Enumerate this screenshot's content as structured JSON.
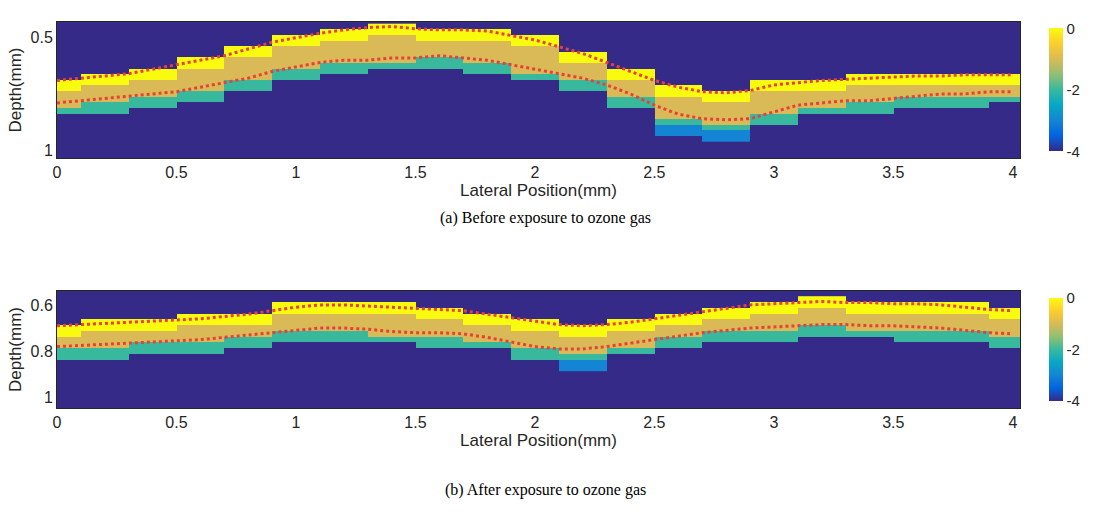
{
  "chart_data": [
    {
      "type": "heatmap",
      "caption": "(a) Before exposure to ozone gas",
      "x_label": "Lateral Position(mm)",
      "y_label": "Depth(mm)",
      "xlim": [
        0,
        4.03
      ],
      "xticks": [
        0,
        0.5,
        1,
        1.5,
        2,
        2.5,
        3,
        3.5,
        4
      ],
      "ylim": [
        1.035,
        0.43
      ],
      "yticks": [
        0.5,
        1
      ],
      "colorbar_range": [
        -4,
        0
      ],
      "colorbar_ticks": [
        -4,
        -2,
        0
      ],
      "x": [
        0,
        0.2,
        0.4,
        0.6,
        0.8,
        1.0,
        1.2,
        1.4,
        1.6,
        1.8,
        2.0,
        2.2,
        2.4,
        2.6,
        2.8,
        3.0,
        3.2,
        3.4,
        3.6,
        3.8,
        4.0
      ],
      "y": [
        0.45,
        0.475,
        0.5,
        0.525,
        0.55,
        0.575,
        0.6,
        0.625,
        0.65,
        0.675,
        0.7,
        0.725,
        0.75,
        0.775,
        0.8,
        0.825,
        0.85,
        0.875,
        0.9,
        0.925,
        0.95
      ],
      "z": [
        [
          -4,
          -4,
          -4,
          -4,
          -4,
          -4,
          -4,
          0,
          -4,
          -4,
          -4,
          -4,
          -4,
          -4,
          -4,
          -4,
          -4,
          -4,
          -4,
          -4,
          -4
        ],
        [
          -4,
          -4,
          -4,
          -4,
          -4,
          -4,
          0,
          0,
          0,
          0,
          -4,
          -4,
          -4,
          -4,
          -4,
          -4,
          -4,
          -4,
          -4,
          -4,
          -4
        ],
        [
          -4,
          -4,
          -4,
          -4,
          -4,
          0,
          0,
          -1,
          0,
          0,
          0,
          -4,
          -4,
          -4,
          -4,
          -4,
          -4,
          -4,
          -4,
          -4,
          -4
        ],
        [
          -4,
          -4,
          -4,
          -4,
          -4,
          0,
          -1,
          -1,
          -1,
          -1,
          0,
          -4,
          -4,
          -4,
          -4,
          -4,
          -4,
          -4,
          -4,
          -4,
          -4
        ],
        [
          -4,
          -4,
          -4,
          -4,
          0,
          -1,
          -1,
          -1,
          -1,
          -1,
          -1,
          -4,
          -4,
          -4,
          -4,
          -4,
          -4,
          -4,
          -4,
          -4,
          -4
        ],
        [
          -4,
          -4,
          -4,
          -4,
          0,
          -1,
          -1,
          -1,
          -1,
          -1,
          -1,
          0,
          -4,
          -4,
          -4,
          -4,
          -4,
          -4,
          -4,
          -4,
          -4
        ],
        [
          -4,
          -4,
          -4,
          0,
          -1,
          -1,
          -1,
          -1,
          -2,
          -1,
          -1,
          0,
          -4,
          -4,
          -4,
          -4,
          -4,
          -4,
          -4,
          -4,
          -4
        ],
        [
          -4,
          -4,
          -4,
          0,
          -1,
          -1,
          -2,
          -2,
          -2,
          -2,
          -1,
          -1,
          -4,
          -4,
          -4,
          -4,
          -4,
          -4,
          -4,
          -4,
          -4
        ],
        [
          -4,
          -4,
          0,
          -1,
          -1,
          -2,
          -2,
          -4,
          -4,
          -2,
          -1,
          -1,
          0,
          -4,
          -4,
          -4,
          -4,
          -4,
          -4,
          -4,
          -4
        ],
        [
          -4,
          0,
          0,
          -1,
          -1,
          -2,
          -4,
          -4,
          -4,
          -4,
          -2,
          -1,
          0,
          -4,
          -4,
          -4,
          -4,
          0,
          0,
          0,
          0
        ],
        [
          0,
          0,
          -1,
          -1,
          -2,
          -4,
          -4,
          -4,
          -4,
          -4,
          -4,
          -2,
          -1,
          -4,
          -4,
          0,
          0,
          0,
          0,
          0,
          0
        ],
        [
          0,
          -1,
          -1,
          -1,
          -2,
          -4,
          -4,
          -4,
          -4,
          -4,
          -4,
          -2,
          -1,
          0,
          -4,
          0,
          0,
          -1,
          -1,
          -1,
          -1
        ],
        [
          -1,
          -1,
          -1,
          -2,
          -4,
          -4,
          -4,
          -4,
          -4,
          -4,
          -4,
          -4,
          -1,
          0,
          0,
          -1,
          -1,
          -1,
          -1,
          -1,
          -1
        ],
        [
          -1,
          -1,
          -2,
          -2,
          -4,
          -4,
          -4,
          -4,
          -4,
          -4,
          -4,
          -4,
          -2,
          -1,
          0,
          -1,
          -1,
          -1,
          -2,
          -2,
          -2
        ],
        [
          -1,
          -2,
          -2,
          -4,
          -4,
          -4,
          -4,
          -4,
          -4,
          -4,
          -4,
          -4,
          -2,
          -1,
          -1,
          -1,
          -1,
          -2,
          -2,
          -2,
          -4
        ],
        [
          -2,
          -2,
          -4,
          -4,
          -4,
          -4,
          -4,
          -4,
          -4,
          -4,
          -4,
          -4,
          -4,
          -1,
          -1,
          -1,
          -2,
          -2,
          -4,
          -4,
          -4
        ],
        [
          -4,
          -4,
          -4,
          -4,
          -4,
          -4,
          -4,
          -4,
          -4,
          -4,
          -4,
          -4,
          -4,
          -1,
          -1,
          -2,
          -4,
          -4,
          -4,
          -4,
          -4
        ],
        [
          -4,
          -4,
          -4,
          -4,
          -4,
          -4,
          -4,
          -4,
          -4,
          -4,
          -4,
          -4,
          -4,
          -2,
          -1,
          -2,
          -4,
          -4,
          -4,
          -4,
          -4
        ],
        [
          -4,
          -4,
          -4,
          -4,
          -4,
          -4,
          -4,
          -4,
          -4,
          -4,
          -4,
          -4,
          -4,
          -3,
          -2,
          -4,
          -4,
          -4,
          -4,
          -4,
          -4
        ],
        [
          -4,
          -4,
          -4,
          -4,
          -4,
          -4,
          -4,
          -4,
          -4,
          -4,
          -4,
          -4,
          -4,
          -3,
          -3,
          -4,
          -4,
          -4,
          -4,
          -4,
          -4
        ],
        [
          -4,
          -4,
          -4,
          -4,
          -4,
          -4,
          -4,
          -4,
          -4,
          -4,
          -4,
          -4,
          -4,
          -4,
          -3,
          -4,
          -4,
          -4,
          -4,
          -4,
          -4
        ]
      ],
      "series": [
        {
          "type": "line",
          "color": "#e8413c",
          "line_style": "dotted",
          "x": [
            0,
            0.1,
            0.2,
            0.3,
            0.4,
            0.5,
            0.6,
            0.7,
            0.8,
            0.9,
            1.0,
            1.1,
            1.2,
            1.3,
            1.4,
            1.5,
            1.6,
            1.7,
            1.8,
            1.9,
            2.0,
            2.1,
            2.2,
            2.3,
            2.4,
            2.5,
            2.6,
            2.7,
            2.8,
            2.9,
            3.0,
            3.1,
            3.2,
            3.3,
            3.4,
            3.5,
            3.6,
            3.7,
            3.8,
            3.9,
            4.0
          ],
          "values": [
            0.69,
            0.68,
            0.67,
            0.66,
            0.64,
            0.62,
            0.6,
            0.58,
            0.55,
            0.52,
            0.5,
            0.48,
            0.465,
            0.455,
            0.45,
            0.46,
            0.465,
            0.465,
            0.47,
            0.49,
            0.51,
            0.54,
            0.57,
            0.61,
            0.65,
            0.69,
            0.72,
            0.74,
            0.745,
            0.735,
            0.71,
            0.7,
            0.69,
            0.685,
            0.68,
            0.675,
            0.67,
            0.67,
            0.665,
            0.665,
            0.665
          ]
        },
        {
          "type": "line",
          "color": "#e8413c",
          "line_style": "dotted",
          "x": [
            0,
            0.1,
            0.2,
            0.3,
            0.4,
            0.5,
            0.6,
            0.7,
            0.8,
            0.9,
            1.0,
            1.1,
            1.2,
            1.3,
            1.4,
            1.5,
            1.6,
            1.7,
            1.8,
            1.9,
            2.0,
            2.1,
            2.2,
            2.3,
            2.4,
            2.5,
            2.6,
            2.7,
            2.8,
            2.9,
            3.0,
            3.1,
            3.2,
            3.3,
            3.4,
            3.5,
            3.6,
            3.7,
            3.8,
            3.9,
            4.0
          ],
          "values": [
            0.79,
            0.78,
            0.77,
            0.76,
            0.75,
            0.74,
            0.72,
            0.7,
            0.68,
            0.65,
            0.63,
            0.61,
            0.6,
            0.6,
            0.59,
            0.59,
            0.58,
            0.59,
            0.6,
            0.62,
            0.64,
            0.66,
            0.68,
            0.71,
            0.75,
            0.8,
            0.84,
            0.86,
            0.865,
            0.86,
            0.83,
            0.8,
            0.79,
            0.78,
            0.78,
            0.77,
            0.76,
            0.75,
            0.75,
            0.74,
            0.74
          ]
        }
      ]
    },
    {
      "type": "heatmap",
      "caption": "(b) After exposure to ozone gas",
      "x_label": "Lateral Position(mm)",
      "y_label": "Depth(mm)",
      "xlim": [
        0,
        4.03
      ],
      "xticks": [
        0,
        0.5,
        1,
        1.5,
        2,
        2.5,
        3,
        3.5,
        4
      ],
      "ylim": [
        1.045,
        0.54
      ],
      "yticks": [
        0.6,
        0.8,
        1
      ],
      "colorbar_range": [
        -4,
        0
      ],
      "colorbar_ticks": [
        -4,
        -2,
        0
      ],
      "x": [
        0,
        0.2,
        0.4,
        0.6,
        0.8,
        1.0,
        1.2,
        1.4,
        1.6,
        1.8,
        2.0,
        2.2,
        2.4,
        2.6,
        2.8,
        3.0,
        3.2,
        3.4,
        3.6,
        3.8,
        4.0
      ],
      "y": [
        0.575,
        0.6,
        0.625,
        0.65,
        0.675,
        0.7,
        0.725,
        0.75,
        0.775,
        0.8,
        0.825,
        0.85,
        0.875
      ],
      "z": [
        [
          -4,
          -4,
          -4,
          -4,
          -4,
          -4,
          -4,
          -4,
          -4,
          -4,
          -4,
          -4,
          -4,
          -4,
          -4,
          -4,
          0,
          -4,
          -4,
          -4,
          -4
        ],
        [
          -4,
          -4,
          -4,
          -4,
          -4,
          0,
          0,
          0,
          -4,
          -4,
          -4,
          -4,
          -4,
          -4,
          -4,
          0,
          0,
          0,
          0,
          0,
          -4
        ],
        [
          -4,
          -4,
          -4,
          -4,
          -4,
          0,
          0,
          0,
          0,
          -4,
          -4,
          -4,
          -4,
          -4,
          0,
          0,
          -1,
          0,
          0,
          0,
          0
        ],
        [
          -4,
          -4,
          -4,
          0,
          0,
          -1,
          -1,
          -1,
          0,
          0,
          -4,
          -4,
          -4,
          0,
          0,
          -1,
          -1,
          -1,
          -1,
          -1,
          0
        ],
        [
          -4,
          0,
          0,
          0,
          0,
          -1,
          -1,
          -1,
          -1,
          0,
          0,
          -4,
          0,
          0,
          -1,
          -1,
          -1,
          -1,
          -1,
          -1,
          -1
        ],
        [
          0,
          0,
          0,
          -1,
          -1,
          -1,
          -1,
          -1,
          -1,
          -1,
          0,
          0,
          0,
          -1,
          -1,
          -1,
          -2,
          -1,
          -1,
          -1,
          -1
        ],
        [
          0,
          -1,
          -1,
          -1,
          -1,
          -2,
          -2,
          -1,
          -1,
          -1,
          -1,
          0,
          -1,
          -1,
          -2,
          -2,
          -2,
          -2,
          -2,
          -2,
          -1
        ],
        [
          -1,
          -1,
          -1,
          -1,
          -2,
          -2,
          -2,
          -2,
          -2,
          -1,
          -1,
          -1,
          -1,
          -2,
          -2,
          -2,
          -4,
          -4,
          -2,
          -2,
          -2
        ],
        [
          -1,
          -1,
          -2,
          -2,
          -2,
          -4,
          -4,
          -4,
          -2,
          -2,
          -1,
          -1,
          -1,
          -2,
          -4,
          -4,
          -4,
          -4,
          -4,
          -4,
          -2
        ],
        [
          -2,
          -2,
          -2,
          -2,
          -4,
          -4,
          -4,
          -4,
          -4,
          -4,
          -2,
          -1,
          -2,
          -4,
          -4,
          -4,
          -4,
          -4,
          -4,
          -4,
          -4
        ],
        [
          -2,
          -2,
          -4,
          -4,
          -4,
          -4,
          -4,
          -4,
          -4,
          -4,
          -2,
          -2,
          -4,
          -4,
          -4,
          -4,
          -4,
          -4,
          -4,
          -4,
          -4
        ],
        [
          -4,
          -4,
          -4,
          -4,
          -4,
          -4,
          -4,
          -4,
          -4,
          -4,
          -4,
          -3,
          -4,
          -4,
          -4,
          -4,
          -4,
          -4,
          -4,
          -4,
          -4
        ],
        [
          -4,
          -4,
          -4,
          -4,
          -4,
          -4,
          -4,
          -4,
          -4,
          -4,
          -4,
          -3,
          -4,
          -4,
          -4,
          -4,
          -4,
          -4,
          -4,
          -4,
          -4
        ]
      ],
      "series": [
        {
          "type": "line",
          "color": "#e8413c",
          "line_style": "dotted",
          "x": [
            0,
            0.1,
            0.2,
            0.3,
            0.4,
            0.5,
            0.6,
            0.7,
            0.8,
            0.9,
            1.0,
            1.1,
            1.2,
            1.3,
            1.4,
            1.5,
            1.6,
            1.7,
            1.8,
            1.9,
            2.0,
            2.1,
            2.2,
            2.3,
            2.4,
            2.5,
            2.6,
            2.7,
            2.8,
            2.9,
            3.0,
            3.1,
            3.2,
            3.3,
            3.4,
            3.5,
            3.6,
            3.7,
            3.8,
            3.9,
            4.0
          ],
          "values": [
            0.69,
            0.685,
            0.68,
            0.675,
            0.67,
            0.665,
            0.66,
            0.65,
            0.64,
            0.625,
            0.61,
            0.6,
            0.6,
            0.605,
            0.61,
            0.615,
            0.62,
            0.625,
            0.64,
            0.655,
            0.67,
            0.685,
            0.69,
            0.685,
            0.675,
            0.66,
            0.645,
            0.63,
            0.615,
            0.6,
            0.595,
            0.59,
            0.585,
            0.59,
            0.59,
            0.595,
            0.595,
            0.6,
            0.61,
            0.62,
            0.625
          ]
        },
        {
          "type": "line",
          "color": "#e8413c",
          "line_style": "dotted",
          "x": [
            0,
            0.1,
            0.2,
            0.3,
            0.4,
            0.5,
            0.6,
            0.7,
            0.8,
            0.9,
            1.0,
            1.1,
            1.2,
            1.3,
            1.4,
            1.5,
            1.6,
            1.7,
            1.8,
            1.9,
            2.0,
            2.1,
            2.2,
            2.3,
            2.4,
            2.5,
            2.6,
            2.7,
            2.8,
            2.9,
            3.0,
            3.1,
            3.2,
            3.3,
            3.4,
            3.5,
            3.6,
            3.7,
            3.8,
            3.9,
            4.0
          ],
          "values": [
            0.78,
            0.775,
            0.77,
            0.765,
            0.76,
            0.755,
            0.75,
            0.74,
            0.73,
            0.72,
            0.71,
            0.7,
            0.7,
            0.705,
            0.715,
            0.72,
            0.72,
            0.725,
            0.74,
            0.76,
            0.78,
            0.79,
            0.79,
            0.78,
            0.765,
            0.75,
            0.735,
            0.72,
            0.71,
            0.7,
            0.695,
            0.69,
            0.685,
            0.685,
            0.69,
            0.69,
            0.695,
            0.7,
            0.71,
            0.72,
            0.725
          ]
        }
      ]
    }
  ]
}
